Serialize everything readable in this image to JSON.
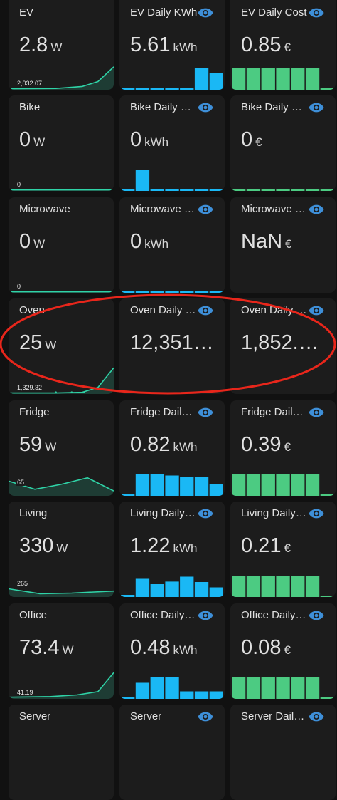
{
  "colors": {
    "background": "#111111",
    "card": "#1c1c1c",
    "energy_bar": "#1ab8f5",
    "cost_bar": "#4ccb82",
    "power_line": "#2fd3a7",
    "eye_icon": "#3e8fd8",
    "annotation": "#e8261b"
  },
  "rows": [
    {
      "power": {
        "title": "EV",
        "value": "2.8",
        "unit": "W",
        "min_label": "2,032.07"
      },
      "energy": {
        "title": "EV Daily KWh",
        "value": "5.61",
        "unit": "kWh",
        "icon": "eye-icon",
        "bars": [
          0,
          0,
          0,
          0,
          0.08,
          1,
          0.8
        ]
      },
      "cost": {
        "title": "EV Daily Cost",
        "value": "0.85",
        "unit": "€",
        "icon": "eye-icon",
        "bars": [
          1,
          1,
          1,
          1,
          1,
          1,
          0.05
        ]
      }
    },
    {
      "power": {
        "title": "Bike",
        "value": "0",
        "unit": "W",
        "min_label": "0"
      },
      "energy": {
        "title": "Bike Daily K…",
        "value": "0",
        "unit": "kWh",
        "icon": "eye-icon",
        "bars": [
          0.1,
          1,
          0.08,
          0.08,
          0.08,
          0.08,
          0.08
        ]
      },
      "cost": {
        "title": "Bike Daily C…",
        "value": "0",
        "unit": "€",
        "icon": "eye-icon",
        "bars": [
          0.08,
          0.08,
          0.08,
          0.08,
          0.08,
          0.08,
          0.08
        ]
      }
    },
    {
      "power": {
        "title": "Microwave",
        "value": "0",
        "unit": "W",
        "min_label": "0"
      },
      "energy": {
        "title": "Microwave …",
        "value": "0",
        "unit": "kWh",
        "icon": "eye-icon",
        "bars": [
          0.1,
          0.1,
          0.1,
          0.1,
          0.1,
          0.1,
          0.1
        ]
      },
      "cost": {
        "title": "Microwave …",
        "value": "NaN",
        "unit": "€",
        "icon": "eye-icon",
        "bars": []
      }
    },
    {
      "power": {
        "title": "Oven",
        "value": "25",
        "unit": "W",
        "min_label": "1,329.32"
      },
      "energy": {
        "title": "Oven Daily …",
        "value": "12,351…",
        "unit": "",
        "icon": "eye-icon",
        "bars": []
      },
      "cost": {
        "title": "Oven Daily …",
        "value": "1,852.…",
        "unit": "",
        "icon": "eye-icon",
        "bars": []
      }
    },
    {
      "power": {
        "title": "Fridge",
        "value": "59",
        "unit": "W",
        "min_label": "65"
      },
      "energy": {
        "title": "Fridge Daily…",
        "value": "0.82",
        "unit": "kWh",
        "icon": "eye-icon",
        "bars": [
          0.1,
          1,
          1,
          0.95,
          0.9,
          0.88,
          0.55
        ]
      },
      "cost": {
        "title": "Fridge Daily…",
        "value": "0.39",
        "unit": "€",
        "icon": "eye-icon",
        "bars": [
          1,
          1,
          1,
          1,
          1,
          1,
          0.05
        ]
      }
    },
    {
      "power": {
        "title": "Living",
        "value": "330",
        "unit": "W",
        "min_label": "265"
      },
      "energy": {
        "title": "Living Daily …",
        "value": "1.22",
        "unit": "kWh",
        "icon": "eye-icon",
        "bars": [
          0.1,
          0.85,
          0.6,
          0.72,
          0.95,
          0.7,
          0.45
        ]
      },
      "cost": {
        "title": "Living Daily …",
        "value": "0.21",
        "unit": "€",
        "icon": "eye-icon",
        "bars": [
          1,
          1,
          1,
          1,
          1,
          1,
          0.05
        ]
      }
    },
    {
      "power": {
        "title": "Office",
        "value": "73.4",
        "unit": "W",
        "min_label": "41.19"
      },
      "energy": {
        "title": "Office Daily …",
        "value": "0.48",
        "unit": "kWh",
        "icon": "eye-icon",
        "bars": [
          0.1,
          0.75,
          1,
          1,
          0.35,
          0.35,
          0.35
        ]
      },
      "cost": {
        "title": "Office Daily …",
        "value": "0.08",
        "unit": "€",
        "icon": "eye-icon",
        "bars": [
          1,
          1,
          1,
          1,
          1,
          1,
          0.05
        ]
      }
    },
    {
      "power": {
        "title": "Server",
        "value": "",
        "unit": "",
        "min_label": ""
      },
      "energy": {
        "title": "Server",
        "value": "",
        "unit": "",
        "icon": "eye-icon",
        "bars": []
      },
      "cost": {
        "title": "Server Daily…",
        "value": "",
        "unit": "",
        "icon": "eye-icon",
        "bars": []
      }
    }
  ]
}
